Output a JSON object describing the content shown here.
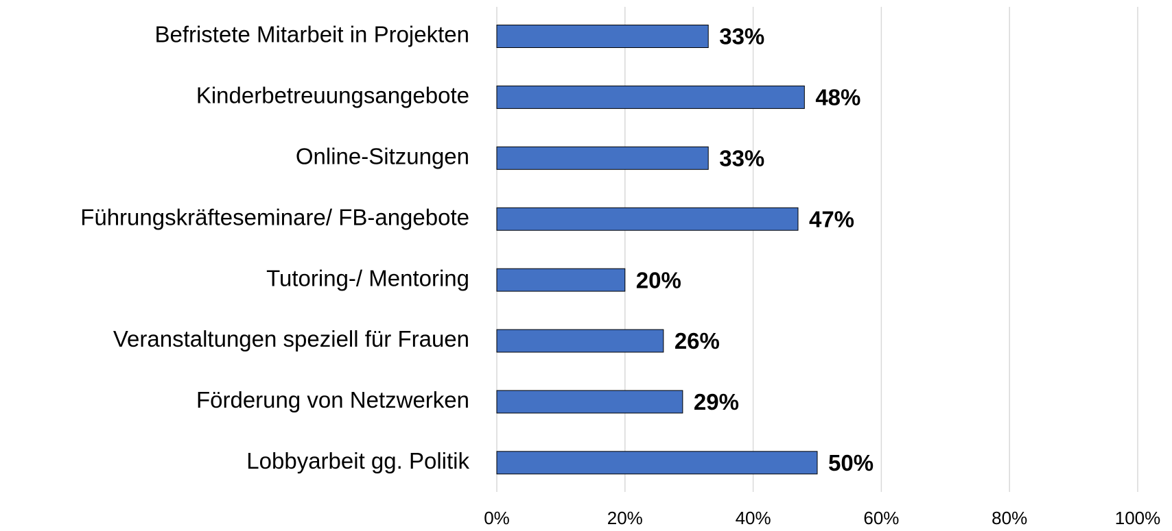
{
  "chart_data": {
    "type": "bar",
    "orientation": "horizontal",
    "categories": [
      "Befristete Mitarbeit in Projekten",
      "Kinderbetreuungsangebote",
      "Online-Sitzungen",
      "Führungskräfteseminare/ FB-angebote",
      "Tutoring-/ Mentoring",
      "Veranstaltungen speziell für Frauen",
      "Förderung von Netzwerken",
      "Lobbyarbeit gg. Politik"
    ],
    "values": [
      33,
      48,
      33,
      47,
      20,
      26,
      29,
      50
    ],
    "value_labels": [
      "33%",
      "48%",
      "33%",
      "47%",
      "20%",
      "26%",
      "29%",
      "50%"
    ],
    "color": "#4472c4",
    "xlim": [
      0,
      100
    ],
    "xticks": [
      {
        "value": 0,
        "label": "0%"
      },
      {
        "value": 20,
        "label": "20%"
      },
      {
        "value": 40,
        "label": "40%"
      },
      {
        "value": 60,
        "label": "60%"
      },
      {
        "value": 80,
        "label": "80%"
      },
      {
        "value": 100,
        "label": "100%"
      }
    ],
    "grid": true
  }
}
